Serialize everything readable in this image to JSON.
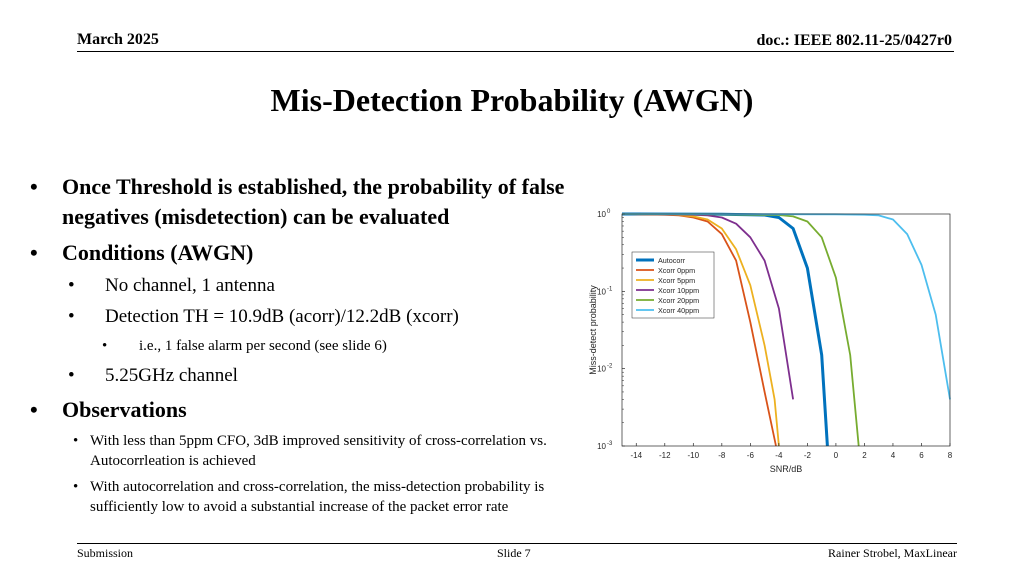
{
  "header": {
    "date": "March 2025",
    "doc": "doc.: IEEE 802.11-25/0427r0"
  },
  "title": "Mis-Detection Probability (AWGN)",
  "bullets": {
    "threshold": {
      "marker": "•",
      "text": "Once Threshold is established, the probability of false negatives (misdetection) can be evaluated"
    },
    "conditions": {
      "marker": "•",
      "text": "Conditions (AWGN)"
    },
    "cond_items": [
      {
        "marker": "•",
        "text": "No channel, 1 antenna"
      },
      {
        "marker": "•",
        "text": "Detection TH = 10.9dB (acorr)/12.2dB (xcorr)"
      },
      {
        "marker": "•",
        "text": "5.25GHz channel"
      }
    ],
    "cond_sub": {
      "marker": "•",
      "text": "i.e., 1 false alarm per second (see slide 6)"
    },
    "observations": {
      "marker": "•",
      "text": "Observations"
    },
    "obs_items": [
      {
        "marker": "•",
        "text": "With less than 5ppm CFO, 3dB improved sensitivity of cross-correlation vs. Autocorrleation is achieved"
      },
      {
        "marker": "•",
        "text": "With autocorrelation and cross-correlation, the miss-detection probability is sufficiently low to avoid a substantial increase of the packet error rate"
      }
    ]
  },
  "footer": {
    "left": "Submission",
    "mid": "Slide 7",
    "right": "Rainer Strobel, MaxLinear"
  },
  "chart_data": {
    "type": "line",
    "title": "",
    "xlabel": "SNR/dB",
    "ylabel": "Miss-detect probability",
    "xlim": [
      -15,
      8
    ],
    "ylim": [
      0.001,
      1
    ],
    "yscale": "log",
    "x_ticks": [
      "-14",
      "-12",
      "-10",
      "-8",
      "-6",
      "-4",
      "-2",
      "0",
      "2",
      "4",
      "6",
      "8"
    ],
    "y_ticks": [
      {
        "base": "10",
        "exp": "0"
      },
      {
        "base": "10",
        "exp": "-1"
      },
      {
        "base": "10",
        "exp": "-2"
      },
      {
        "base": "10",
        "exp": "-3"
      }
    ],
    "grid": false,
    "legend_position": "upper-left",
    "series": [
      {
        "name": "Autocorr",
        "color": "#0072BD",
        "bold": true,
        "x": [
          -15,
          -8,
          -6,
          -5,
          -4,
          -3,
          -2,
          -1,
          -0.6
        ],
        "y": [
          1,
          0.99,
          0.98,
          0.97,
          0.9,
          0.65,
          0.2,
          0.015,
          0.001
        ]
      },
      {
        "name": "Xcorr 0ppm",
        "color": "#D95319",
        "bold": false,
        "x": [
          -15,
          -12,
          -11,
          -10,
          -9,
          -8,
          -7,
          -6,
          -5,
          -4.2
        ],
        "y": [
          1,
          0.98,
          0.96,
          0.9,
          0.8,
          0.55,
          0.25,
          0.04,
          0.005,
          0.001
        ]
      },
      {
        "name": "Xcorr 5ppm",
        "color": "#EDB120",
        "bold": false,
        "x": [
          -15,
          -12,
          -11,
          -10,
          -9,
          -8,
          -7,
          -6,
          -5,
          -4.3,
          -4
        ],
        "y": [
          1,
          0.99,
          0.97,
          0.93,
          0.85,
          0.65,
          0.35,
          0.12,
          0.02,
          0.004,
          0.001
        ]
      },
      {
        "name": "Xcorr 10ppm",
        "color": "#7E2F8E",
        "bold": false,
        "x": [
          -15,
          -12,
          -10,
          -9,
          -8,
          -7,
          -6,
          -5,
          -4,
          -3
        ],
        "y": [
          1,
          0.99,
          0.98,
          0.96,
          0.9,
          0.75,
          0.5,
          0.25,
          0.06,
          0.004
        ]
      },
      {
        "name": "Xcorr 20ppm",
        "color": "#77AC30",
        "bold": false,
        "x": [
          -15,
          -8,
          -6,
          -4,
          -3,
          -2,
          -1,
          0,
          1,
          1.6
        ],
        "y": [
          1,
          0.99,
          0.98,
          0.97,
          0.93,
          0.8,
          0.5,
          0.15,
          0.015,
          0.001
        ]
      },
      {
        "name": "Xcorr 40ppm",
        "color": "#4DBEEE",
        "bold": false,
        "x": [
          -15,
          0,
          2,
          3,
          4,
          5,
          6,
          7,
          8
        ],
        "y": [
          1,
          0.99,
          0.98,
          0.96,
          0.85,
          0.55,
          0.22,
          0.05,
          0.004
        ]
      }
    ]
  }
}
